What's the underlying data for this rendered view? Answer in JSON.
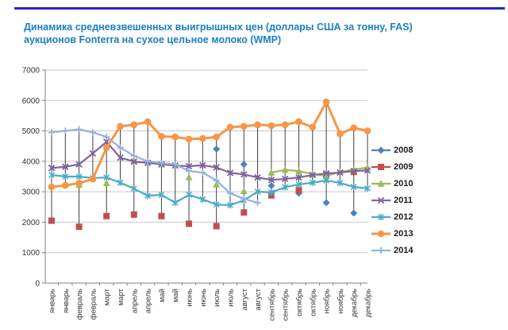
{
  "page": {
    "title_line1": "Динамика средневзвешенных выигрышных цен (доллары США за тонну, FAS)",
    "title_line2": "аукционов Fonterra на сухое цельное молоко (WMP)",
    "title_color": "#1b7ec4",
    "top_rule_color": "#2727c3"
  },
  "chart_data": {
    "type": "line",
    "title": "Динамика средневзвешенных выигрышных цен (доллары США за тонну, FAS) аукционов Fonterra на сухое цельное молоко (WMP)",
    "xlabel": "",
    "ylabel": "",
    "ylim": [
      0,
      7000
    ],
    "ytick_step": 1000,
    "grid": true,
    "high_low_lines": true,
    "legend_position": "right",
    "categories": [
      "январь",
      "январь",
      "февраль",
      "февраль",
      "март",
      "март",
      "апрель",
      "апрель",
      "май",
      "май",
      "июнь",
      "июнь",
      "июль",
      "июль",
      "август",
      "август",
      "сентябрь",
      "сентябрь",
      "октябрь",
      "октябрь",
      "ноябрь",
      "ноябрь",
      "декабрь",
      "декабрь"
    ],
    "series": [
      {
        "name": "2008",
        "color": "#4F81BD",
        "marker": "diamond",
        "line_width": 2.2,
        "values": [
          null,
          null,
          null,
          null,
          null,
          null,
          null,
          null,
          null,
          null,
          null,
          null,
          4400,
          null,
          3900,
          null,
          3200,
          null,
          2950,
          null,
          2640,
          null,
          2300,
          null
        ]
      },
      {
        "name": "2009",
        "color": "#C0504D",
        "marker": "square",
        "line_width": 2.2,
        "values": [
          2050,
          null,
          1850,
          null,
          2200,
          null,
          2250,
          null,
          2200,
          null,
          1950,
          null,
          1870,
          null,
          2320,
          null,
          2880,
          null,
          3050,
          null,
          3550,
          null,
          3650,
          null
        ]
      },
      {
        "name": "2010",
        "color": "#9BBB59",
        "marker": "triangle",
        "line_width": 2.2,
        "values": [
          null,
          null,
          3230,
          null,
          3290,
          null,
          4020,
          null,
          3900,
          null,
          3480,
          null,
          3240,
          null,
          3020,
          null,
          3630,
          3720,
          3680,
          3580,
          3520,
          3650,
          3730,
          3790
        ]
      },
      {
        "name": "2011",
        "color": "#8064A2",
        "marker": "x",
        "line_width": 2.2,
        "values": [
          3780,
          3820,
          3900,
          4260,
          4640,
          4120,
          3990,
          3950,
          3900,
          3860,
          3840,
          3870,
          3800,
          3620,
          3570,
          3470,
          3390,
          3420,
          3470,
          3550,
          3600,
          3630,
          3680,
          3700
        ]
      },
      {
        "name": "2012",
        "color": "#4BACC6",
        "marker": "asterisk",
        "line_width": 2.2,
        "values": [
          3550,
          3500,
          3500,
          3450,
          3470,
          3300,
          3100,
          2870,
          2900,
          2640,
          2900,
          2750,
          2580,
          2560,
          2720,
          3000,
          2980,
          3150,
          3240,
          3300,
          3370,
          3290,
          3160,
          3110
        ]
      },
      {
        "name": "2013",
        "color": "#F79646",
        "marker": "circle",
        "line_width": 3,
        "values": [
          3160,
          3210,
          3280,
          3420,
          4450,
          5150,
          5200,
          5300,
          4820,
          4800,
          4730,
          4750,
          4800,
          5120,
          5150,
          5200,
          5170,
          5200,
          5300,
          5120,
          5950,
          4900,
          5100,
          5000
        ]
      },
      {
        "name": "2014",
        "color": "#95B3D7",
        "marker": "plus",
        "line_width": 2.2,
        "values": [
          4950,
          5000,
          5050,
          4950,
          4800,
          4450,
          4180,
          4000,
          3940,
          3900,
          3680,
          3630,
          3370,
          2950,
          2770,
          2640,
          null,
          null,
          null,
          null,
          null,
          null,
          null,
          null
        ]
      }
    ]
  }
}
